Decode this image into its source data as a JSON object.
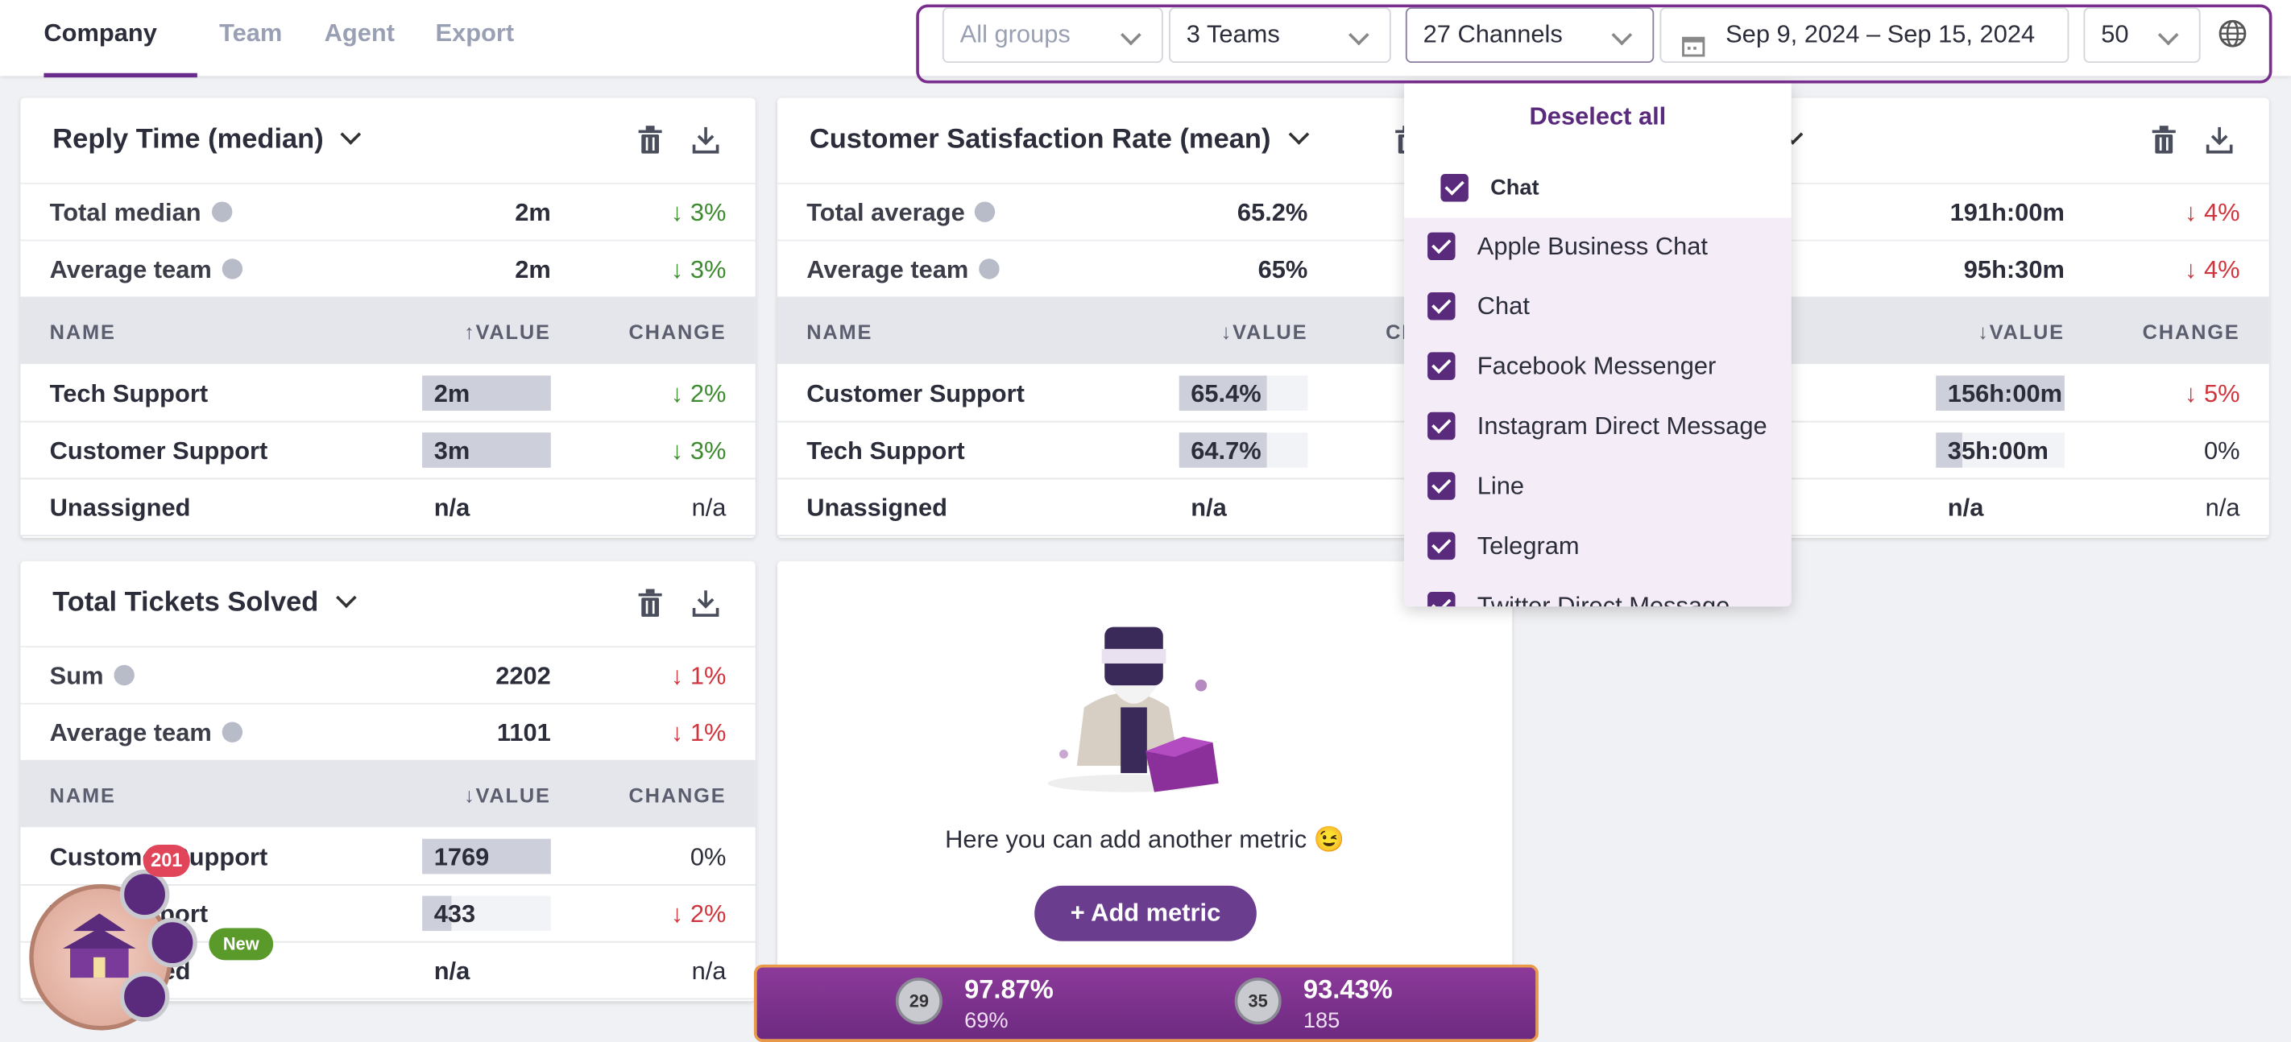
{
  "tabs": [
    "Company",
    "Team",
    "Agent",
    "Export"
  ],
  "filters": {
    "groups": "All groups",
    "teams": "3 Teams",
    "channels": "27 Channels",
    "dates": "Sep 9, 2024 – Sep 15, 2024",
    "limit": "50"
  },
  "cards": [
    {
      "title": "Reply Time (median)",
      "columns": [
        "NAME",
        "↑VALUE",
        "CHANGE"
      ],
      "summary": [
        [
          "Total median",
          "2m",
          "↓ 3%",
          "#3d8b2f"
        ],
        [
          "Average team",
          "2m",
          "↓ 3%",
          "#3d8b2f"
        ]
      ],
      "rows": [
        [
          "Tech Support",
          "2m",
          "↓ 2%",
          "#3d8b2f"
        ],
        [
          "Customer Support",
          "3m",
          "↓ 3%",
          "#3d8b2f"
        ],
        [
          "Unassigned",
          "n/a",
          "n/a",
          "#2b2d3a"
        ]
      ]
    },
    {
      "title": "Customer Satisfaction Rate (mean)",
      "columns": [
        "NAME",
        "↓VALUE",
        "CHANGE"
      ],
      "summary": [
        [
          "Total average",
          "65.2%",
          null,
          null
        ],
        [
          "Average team",
          "65%",
          null,
          null
        ]
      ],
      "rows": [
        [
          "Customer Support",
          "65.4%",
          null,
          null
        ],
        [
          "Tech Support",
          "64.7%",
          null,
          null
        ],
        [
          "Unassigned",
          "n/a",
          null,
          null
        ]
      ]
    },
    {
      "title": null,
      "columns": [
        null,
        "↓VALUE",
        "CHANGE"
      ],
      "summary": [
        [
          null,
          "191h:00m",
          "↓ 4%",
          "#d0343c"
        ],
        [
          null,
          "95h:30m",
          "↓ 4%",
          "#d0343c"
        ]
      ],
      "rows": [
        [
          null,
          "156h:00m",
          "↓ 5%",
          "#d0343c"
        ],
        [
          null,
          "35h:00m",
          "0%",
          "#2b2d3a"
        ],
        [
          null,
          "n/a",
          "n/a",
          "#2b2d3a"
        ]
      ]
    },
    {
      "title": "Total Tickets Solved",
      "columns": [
        "NAME",
        "↓VALUE",
        "CHANGE"
      ],
      "summary": [
        [
          "Sum",
          "2202",
          "↓ 1%",
          "#d0343c"
        ],
        [
          "Average team",
          "1101",
          "↓ 1%",
          "#d0343c"
        ]
      ],
      "rows": [
        [
          "Customer Support",
          "1769",
          "0%",
          "#2b2d3a"
        ],
        [
          "Tech Support",
          "433",
          "↓ 2%",
          "#d0343c"
        ],
        [
          "Unassigned",
          "n/a",
          "n/a",
          "#2b2d3a"
        ]
      ]
    }
  ],
  "empty_card": {
    "text": "Here you can add another metric 😉",
    "button": "+ Add metric"
  },
  "dropdown": {
    "deselect": "Deselect all",
    "group": "Chat",
    "items": [
      "Apple Business Chat",
      "Chat",
      "Facebook Messenger",
      "Instagram Direct Message",
      "Line",
      "Telegram",
      "Twitter Direct Message"
    ]
  },
  "stats": [
    {
      "rank": "29",
      "value": "97.87%",
      "sub": "69%"
    },
    {
      "rank": "35",
      "value": "93.43%",
      "sub": "185"
    }
  ],
  "widget": {
    "badge": "201",
    "new": "New"
  }
}
